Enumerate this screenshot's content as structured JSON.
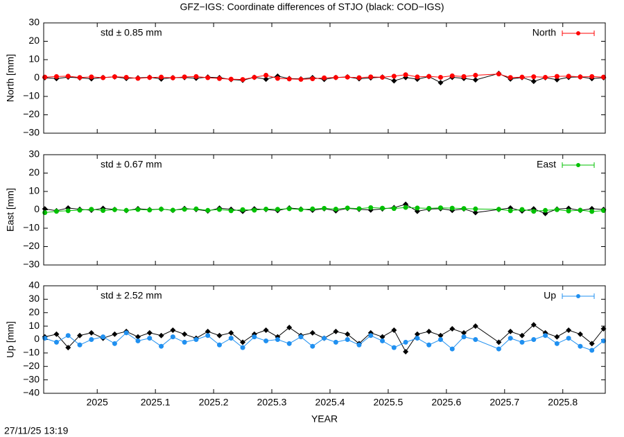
{
  "timestamp": "27/11/25 13:19",
  "chart_data": [
    {
      "type": "line",
      "title": "GFZ−IGS: Coordinate differences of STJO (black: COD−IGS)",
      "ylabel": "North [mm]",
      "annotation": "std ± 0.85 mm",
      "annotation_color": "#ff0000",
      "xlim": [
        2024.908,
        2025.873
      ],
      "ylim": [
        -30,
        30
      ],
      "yticks": [
        30,
        20,
        10,
        0,
        {
          "value": -10,
          "label": "−10"
        },
        {
          "value": -20,
          "label": "−20"
        },
        {
          "value": -30,
          "label": "−30"
        }
      ],
      "legend": "top-right",
      "x": [
        2024.91,
        2024.93,
        2024.95,
        2024.97,
        2024.99,
        2025.01,
        2025.03,
        2025.05,
        2025.07,
        2025.09,
        2025.11,
        2025.13,
        2025.15,
        2025.17,
        2025.19,
        2025.21,
        2025.23,
        2025.25,
        2025.27,
        2025.29,
        2025.31,
        2025.33,
        2025.35,
        2025.37,
        2025.39,
        2025.41,
        2025.43,
        2025.45,
        2025.47,
        2025.49,
        2025.51,
        2025.53,
        2025.55,
        2025.57,
        2025.59,
        2025.61,
        2025.63,
        2025.65,
        2025.69,
        2025.71,
        2025.73,
        2025.75,
        2025.77,
        2025.79,
        2025.81,
        2025.83,
        2025.85,
        2025.87
      ],
      "series": [
        {
          "color": "#000000",
          "marker": "diamond",
          "values": [
            0.2,
            -0.3,
            0.5,
            0.1,
            -0.4,
            0.3,
            0.6,
            -0.2,
            0.1,
            0.4,
            -0.5,
            0.2,
            0.3,
            -0.1,
            0.5,
            0.2,
            -0.8,
            -1.2,
            0.4,
            -0.6,
            1.0,
            -0.3,
            -0.5,
            0.2,
            -0.7,
            0.3,
            0.6,
            -0.4,
            0.1,
            0.5,
            -1.5,
            0.3,
            -0.6,
            0.8,
            -2.5,
            0.4,
            -0.2,
            -1.0,
            2.5,
            -0.5,
            0.3,
            -1.8,
            0.2,
            -0.9,
            0.4,
            0.6,
            -0.3,
            0.2
          ]
        },
        {
          "name": "North",
          "color": "#ff0000",
          "marker": "circle",
          "values": [
            0.5,
            0.8,
            1.0,
            0.3,
            0.6,
            0.2,
            0.7,
            0.4,
            -0.2,
            0.3,
            0.5,
            0.1,
            0.6,
            0.8,
            0.2,
            -0.3,
            -0.6,
            -0.8,
            0.4,
            1.5,
            -0.2,
            -0.5,
            -0.7,
            -0.4,
            0.1,
            0.3,
            0.5,
            0.2,
            0.6,
            0.4,
            1.0,
            1.8,
            0.6,
            0.9,
            0.4,
            1.2,
            0.8,
            1.5,
            2.2,
            0.3,
            0.5,
            0.7,
            0.4,
            0.9,
            1.0,
            0.6,
            0.8,
            0.5
          ]
        }
      ]
    },
    {
      "type": "line",
      "ylabel": "East [mm]",
      "annotation": "std ± 0.67 mm",
      "annotation_color": "#00c000",
      "xlim": [
        2024.908,
        2025.873
      ],
      "ylim": [
        -30,
        30
      ],
      "yticks": [
        30,
        20,
        10,
        0,
        {
          "value": -10,
          "label": "−10"
        },
        {
          "value": -20,
          "label": "−20"
        },
        {
          "value": -30,
          "label": "−30"
        }
      ],
      "legend": "top-right",
      "x": [
        2024.91,
        2024.93,
        2024.95,
        2024.97,
        2024.99,
        2025.01,
        2025.03,
        2025.05,
        2025.07,
        2025.09,
        2025.11,
        2025.13,
        2025.15,
        2025.17,
        2025.19,
        2025.21,
        2025.23,
        2025.25,
        2025.27,
        2025.29,
        2025.31,
        2025.33,
        2025.35,
        2025.37,
        2025.39,
        2025.41,
        2025.43,
        2025.45,
        2025.47,
        2025.49,
        2025.51,
        2025.53,
        2025.55,
        2025.57,
        2025.59,
        2025.61,
        2025.63,
        2025.65,
        2025.69,
        2025.71,
        2025.73,
        2025.75,
        2025.77,
        2025.79,
        2025.81,
        2025.83,
        2025.85,
        2025.87
      ],
      "series": [
        {
          "color": "#000000",
          "marker": "diamond",
          "values": [
            0.5,
            -0.5,
            1.0,
            0.3,
            -0.2,
            0.8,
            0.2,
            -0.4,
            0.6,
            0.1,
            0.4,
            -0.3,
            0.7,
            0.2,
            -0.6,
            0.9,
            0.3,
            -0.8,
            0.5,
            0.2,
            -0.4,
            1.0,
            0.4,
            -0.2,
            0.6,
            -0.5,
            0.8,
            0.3,
            -0.1,
            0.5,
            1.2,
            3.0,
            -0.8,
            0.4,
            0.6,
            -0.3,
            0.5,
            -1.5,
            0.2,
            1.0,
            -0.6,
            0.5,
            -2.0,
            0.4,
            0.8,
            -0.3,
            0.6,
            0.2
          ]
        },
        {
          "name": "East",
          "color": "#00c000",
          "marker": "circle",
          "values": [
            -1.5,
            -0.8,
            -0.5,
            -0.2,
            0.3,
            -0.4,
            0.1,
            -0.3,
            0.2,
            -0.1,
            0.4,
            -0.2,
            0.3,
            0.5,
            -0.3,
            0.2,
            -0.5,
            0.1,
            -0.2,
            0.4,
            0.3,
            0.6,
            0.2,
            0.5,
            0.8,
            0.4,
            1.0,
            0.6,
            1.2,
            0.9,
            0.7,
            1.3,
            1.0,
            0.8,
            1.1,
            0.9,
            0.7,
            0.5,
            0.3,
            -0.5,
            0.2,
            -0.8,
            -0.3,
            0.1,
            -0.6,
            -0.2,
            -0.9,
            -0.4
          ]
        }
      ]
    },
    {
      "type": "line",
      "ylabel": "Up [mm]",
      "xlabel": "YEAR",
      "annotation": "std ± 2.52 mm",
      "annotation_color": "#2090f0",
      "xlim": [
        2024.908,
        2025.873
      ],
      "ylim": [
        -40,
        40
      ],
      "xticks": [
        2025,
        2025.1,
        2025.2,
        2025.3,
        2025.4,
        2025.5,
        2025.6,
        2025.7,
        2025.8
      ],
      "yticks": [
        40,
        30,
        20,
        10,
        0,
        {
          "value": -10,
          "label": "−10"
        },
        {
          "value": -20,
          "label": "−20"
        },
        {
          "value": -30,
          "label": "−30"
        },
        {
          "value": -40,
          "label": "−40"
        }
      ],
      "legend": "top-right",
      "x": [
        2024.91,
        2024.93,
        2024.95,
        2024.97,
        2024.99,
        2025.01,
        2025.03,
        2025.05,
        2025.07,
        2025.09,
        2025.11,
        2025.13,
        2025.15,
        2025.17,
        2025.19,
        2025.21,
        2025.23,
        2025.25,
        2025.27,
        2025.29,
        2025.31,
        2025.33,
        2025.35,
        2025.37,
        2025.39,
        2025.41,
        2025.43,
        2025.45,
        2025.47,
        2025.49,
        2025.51,
        2025.53,
        2025.55,
        2025.57,
        2025.59,
        2025.61,
        2025.63,
        2025.65,
        2025.69,
        2025.71,
        2025.73,
        2025.75,
        2025.77,
        2025.79,
        2025.81,
        2025.83,
        2025.85,
        2025.87
      ],
      "series": [
        {
          "color": "#000000",
          "marker": "diamond",
          "values": [
            2,
            4,
            -6,
            3,
            5,
            1,
            4,
            6,
            2,
            5,
            3,
            7,
            4,
            1,
            6,
            3,
            5,
            -2,
            4,
            7,
            2,
            9,
            3,
            5,
            1,
            6,
            4,
            -3,
            5,
            2,
            7,
            -9,
            4,
            6,
            3,
            8,
            5,
            10,
            -2,
            6,
            3,
            11,
            5,
            2,
            7,
            4,
            -3,
            8
          ]
        },
        {
          "name": "Up",
          "color": "#2090f0",
          "marker": "circle",
          "values": [
            1,
            -2,
            3,
            -4,
            0,
            2,
            -3,
            5,
            -1,
            1,
            -5,
            2,
            -2,
            0,
            3,
            -4,
            1,
            -6,
            2,
            -1,
            0,
            -3,
            2,
            -5,
            1,
            -2,
            0,
            -4,
            3,
            -1,
            -6,
            -2,
            1,
            -4,
            0,
            -7,
            2,
            0,
            -7,
            1,
            -2,
            0,
            3,
            -3,
            1,
            -5,
            -8,
            -1
          ]
        }
      ]
    }
  ]
}
